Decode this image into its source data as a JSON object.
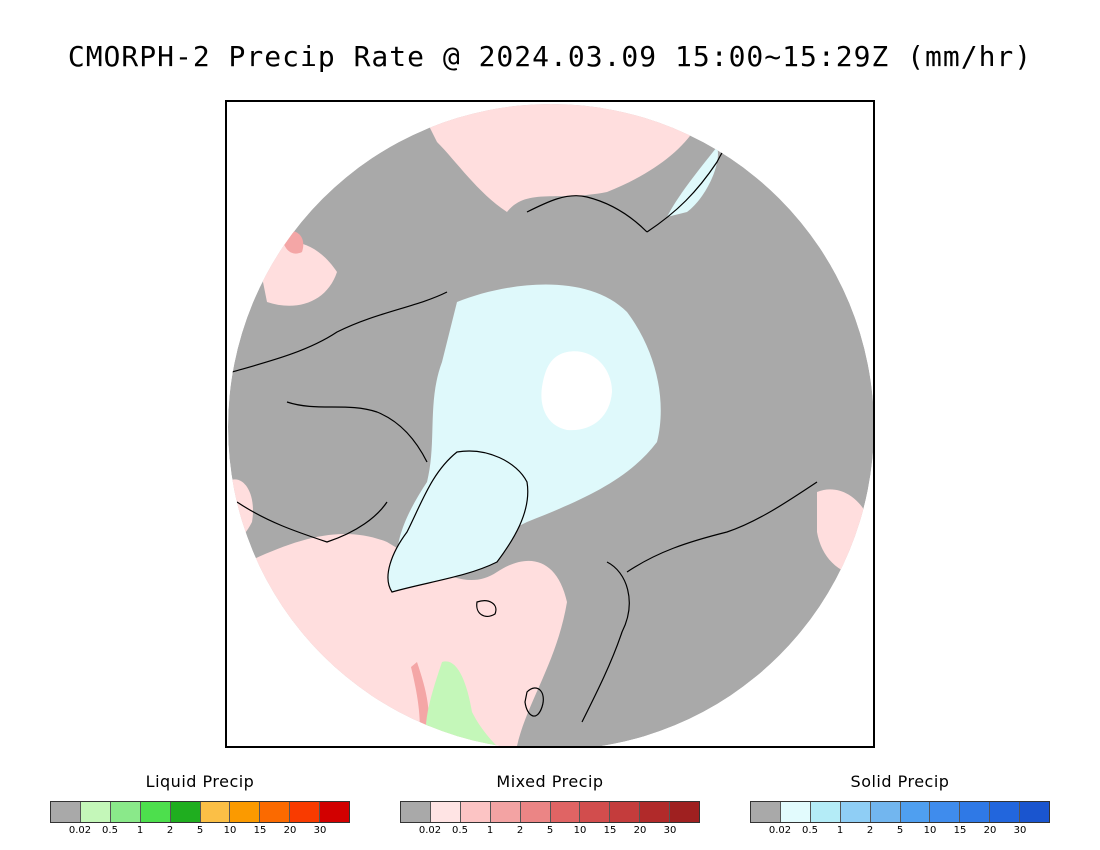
{
  "title": "CMORPH-2 Precip Rate @ 2024.03.09 15:00~15:29Z (mm/hr)",
  "map": {
    "colors": {
      "no_precip": "#a9a9a9",
      "mixed_light": "#ffdede",
      "mixed_mid": "#f4a6a6",
      "snow_light": "#dff9fb",
      "snow_white": "#ffffff",
      "liquid_light": "#c4f7b9",
      "liquid_mid": "#7ee37a",
      "coast": "#000000"
    }
  },
  "legends": [
    {
      "title": "Liquid Precip",
      "colors": [
        "#a9a9a9",
        "#c4f7b9",
        "#8ae98a",
        "#4ddf4d",
        "#1fae1f",
        "#fbbf46",
        "#fb9a00",
        "#fb6a00",
        "#f93b00",
        "#d20000"
      ],
      "ticks": [
        "0.02",
        "0.5",
        "1",
        "2",
        "5",
        "10",
        "15",
        "20",
        "30"
      ]
    },
    {
      "title": "Mixed Precip",
      "colors": [
        "#a9a9a9",
        "#ffe4e4",
        "#fcc4c4",
        "#f3a3a3",
        "#eb8585",
        "#e06464",
        "#d24d4d",
        "#c43c3c",
        "#b12a2a",
        "#9f2020"
      ],
      "ticks": [
        "0.02",
        "0.5",
        "1",
        "2",
        "5",
        "10",
        "15",
        "20",
        "30"
      ]
    },
    {
      "title": "Solid Precip",
      "colors": [
        "#a9a9a9",
        "#e2fbfd",
        "#b4ecf7",
        "#8fcef5",
        "#72b6ef",
        "#4f9ff0",
        "#3f8ced",
        "#2f79e6",
        "#2266dd",
        "#1a55cf"
      ],
      "ticks": [
        "0.02",
        "0.5",
        "1",
        "2",
        "5",
        "10",
        "15",
        "20",
        "30"
      ]
    }
  ]
}
